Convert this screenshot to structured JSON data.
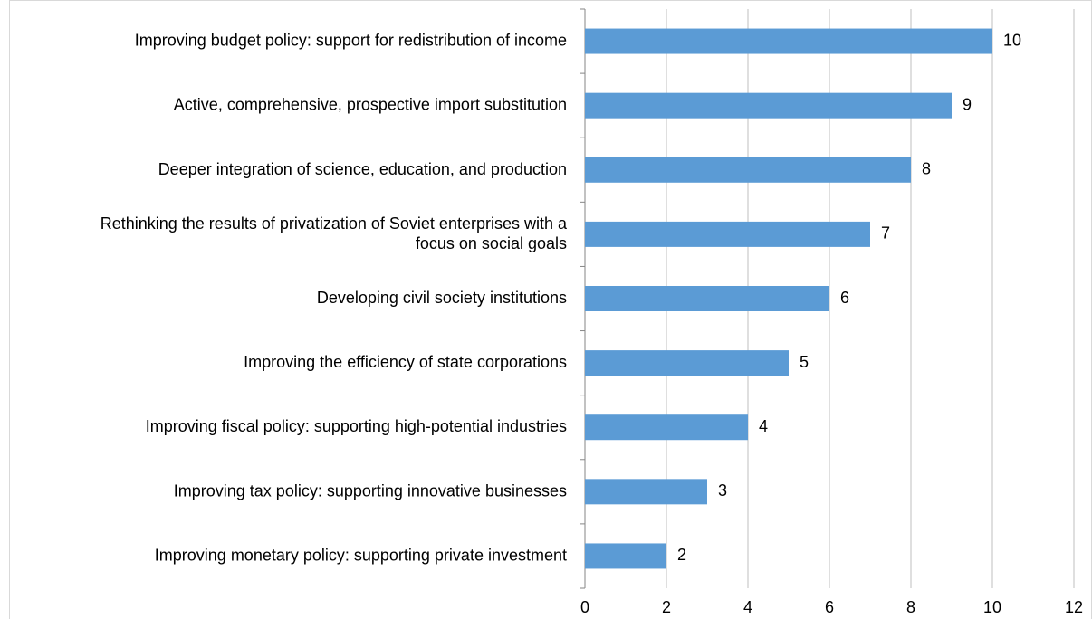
{
  "chart_data": {
    "type": "bar",
    "orientation": "horizontal",
    "categories": [
      "Improving budget policy: support for redistribution of income",
      "Active, comprehensive, prospective import substitution",
      "Deeper integration of science, education, and production",
      "Rethinking the results of privatization of Soviet enterprises with a focus on social goals",
      "Developing civil society institutions",
      "Improving the efficiency of state corporations",
      "Improving fiscal policy: supporting high-potential industries",
      "Improving tax policy: supporting innovative businesses",
      "Improving monetary policy: supporting private investment"
    ],
    "values": [
      10,
      9,
      8,
      7,
      6,
      5,
      4,
      3,
      2
    ],
    "color": "#5b9bd5",
    "xlim": [
      0,
      12
    ],
    "xticks": [
      0,
      2,
      4,
      6,
      8,
      10,
      12
    ],
    "grid": true
  }
}
